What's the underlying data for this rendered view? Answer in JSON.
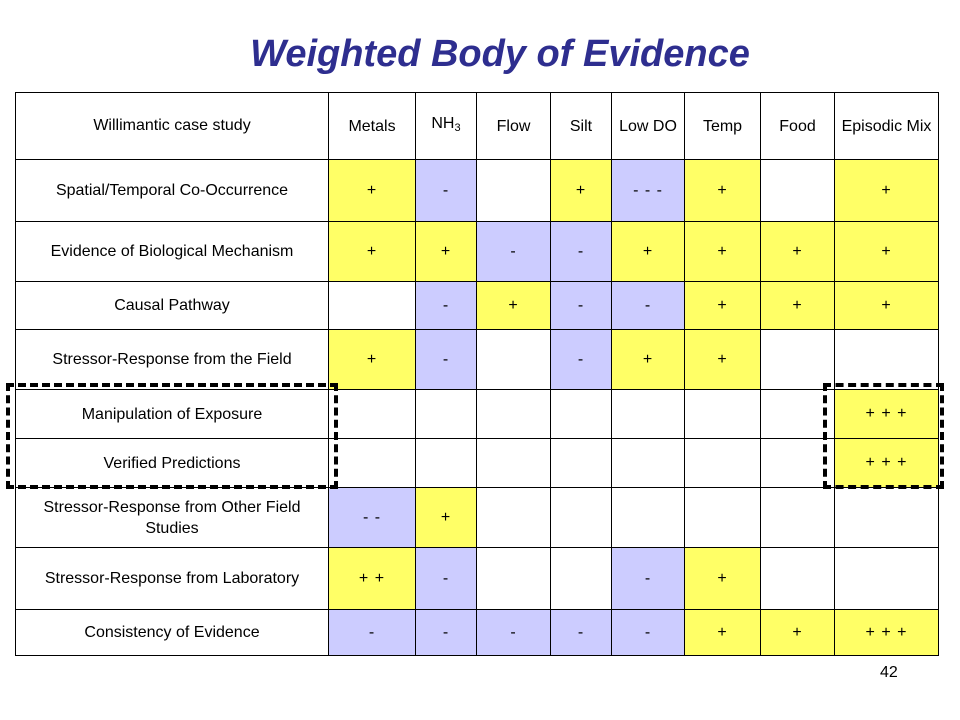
{
  "slide": {
    "title": "Weighted Body of Evidence",
    "page_number": "42"
  },
  "table": {
    "corner_label": "Willimantic case study",
    "columns": [
      {
        "label": "Metals"
      },
      {
        "label": "NH",
        "sub": "3"
      },
      {
        "label": "Flow"
      },
      {
        "label": "Silt"
      },
      {
        "label": "Low DO"
      },
      {
        "label": "Temp"
      },
      {
        "label": "Food"
      },
      {
        "label": "Episodic Mix"
      }
    ],
    "rows": [
      {
        "label": "Spatial/Temporal Co-Occurrence",
        "cells": [
          "+",
          "-",
          "",
          "+",
          "- - -",
          "+",
          "",
          "+"
        ]
      },
      {
        "label": "Evidence of Biological Mechanism",
        "cells": [
          "+",
          "+",
          "-",
          "-",
          "+",
          "+",
          "+",
          "+"
        ]
      },
      {
        "label": "Causal Pathway",
        "cells": [
          "",
          "-",
          "+",
          "-",
          "-",
          "+",
          "+",
          "+"
        ]
      },
      {
        "label": "Stressor-Response from the Field",
        "cells": [
          "+",
          "-",
          "",
          "-",
          "+",
          "+",
          "",
          ""
        ]
      },
      {
        "label": "Manipulation of Exposure",
        "cells": [
          "",
          "",
          "",
          "",
          "",
          "",
          "",
          "+ + +"
        ]
      },
      {
        "label": "Verified Predictions",
        "cells": [
          "",
          "",
          "",
          "",
          "",
          "",
          "",
          "+ + +"
        ]
      },
      {
        "label": "Stressor-Response from Other Field Studies",
        "cells": [
          "- -",
          "+",
          "",
          "",
          "",
          "",
          "",
          ""
        ]
      },
      {
        "label": "Stressor-Response from Laboratory",
        "cells": [
          "+ +",
          "-",
          "",
          "",
          "-",
          "+",
          "",
          ""
        ]
      },
      {
        "label": "Consistency of Evidence",
        "cells": [
          "-",
          "-",
          "-",
          "-",
          "-",
          "+",
          "+",
          "+ + +"
        ]
      }
    ]
  },
  "colors": {
    "title": "#2e2e8f",
    "positive_fill": "#ffff66",
    "negative_fill": "#ccccff"
  }
}
